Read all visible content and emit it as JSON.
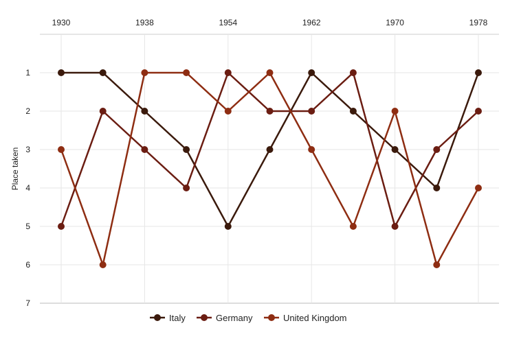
{
  "chart_data": {
    "type": "line",
    "ylabel": "Place taken",
    "x_tick_labels": [
      "1930",
      "1938",
      "1954",
      "1962",
      "1970",
      "1978"
    ],
    "x": [
      "1930",
      "1934",
      "1938",
      "1950",
      "1954",
      "1958",
      "1962",
      "1966",
      "1970",
      "1974",
      "1978"
    ],
    "y_ticks": [
      1,
      2,
      3,
      4,
      5,
      6,
      7
    ],
    "ylim": [
      7,
      0
    ],
    "y_inverted": true,
    "grid": true,
    "legend_position": "bottom",
    "series": [
      {
        "name": "Italy",
        "color": "#3b1a0c",
        "values": [
          1,
          1,
          2,
          3,
          5,
          3,
          1,
          2,
          3,
          4,
          1
        ]
      },
      {
        "name": "Germany",
        "color": "#6b1d12",
        "values": [
          5,
          2,
          3,
          4,
          1,
          2,
          2,
          1,
          5,
          3,
          2
        ]
      },
      {
        "name": "United Kingdom",
        "color": "#8e2d12",
        "values": [
          3,
          6,
          1,
          1,
          2,
          1,
          3,
          5,
          2,
          6,
          4
        ]
      }
    ]
  }
}
